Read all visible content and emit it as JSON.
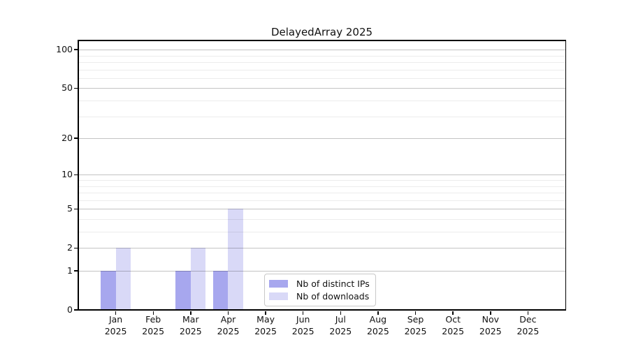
{
  "chart_data": {
    "type": "bar",
    "title": "DelayedArray 2025",
    "categories": [
      "Jan",
      "Feb",
      "Mar",
      "Apr",
      "May",
      "Jun",
      "Jul",
      "Aug",
      "Sep",
      "Oct",
      "Nov",
      "Dec"
    ],
    "year": "2025",
    "series": [
      {
        "name": "Nb of distinct IPs",
        "color": "#a7a7ee",
        "values": [
          1,
          0,
          1,
          1,
          0,
          0,
          0,
          0,
          0,
          0,
          0,
          0
        ]
      },
      {
        "name": "Nb of downloads",
        "color": "#d9d9f7",
        "values": [
          2,
          0,
          2,
          5,
          0,
          0,
          0,
          0,
          0,
          0,
          0,
          0
        ]
      }
    ],
    "xlabel": "",
    "ylabel": "",
    "yscale": "log1p",
    "ylim": [
      0,
      120
    ],
    "yticks": [
      0,
      1,
      2,
      5,
      10,
      20,
      50,
      100
    ],
    "yticks_minor": [
      3,
      4,
      6,
      7,
      8,
      9,
      30,
      40,
      60,
      70,
      80,
      90
    ],
    "grid": "horizontal",
    "legend": {
      "position": "lower center"
    }
  }
}
